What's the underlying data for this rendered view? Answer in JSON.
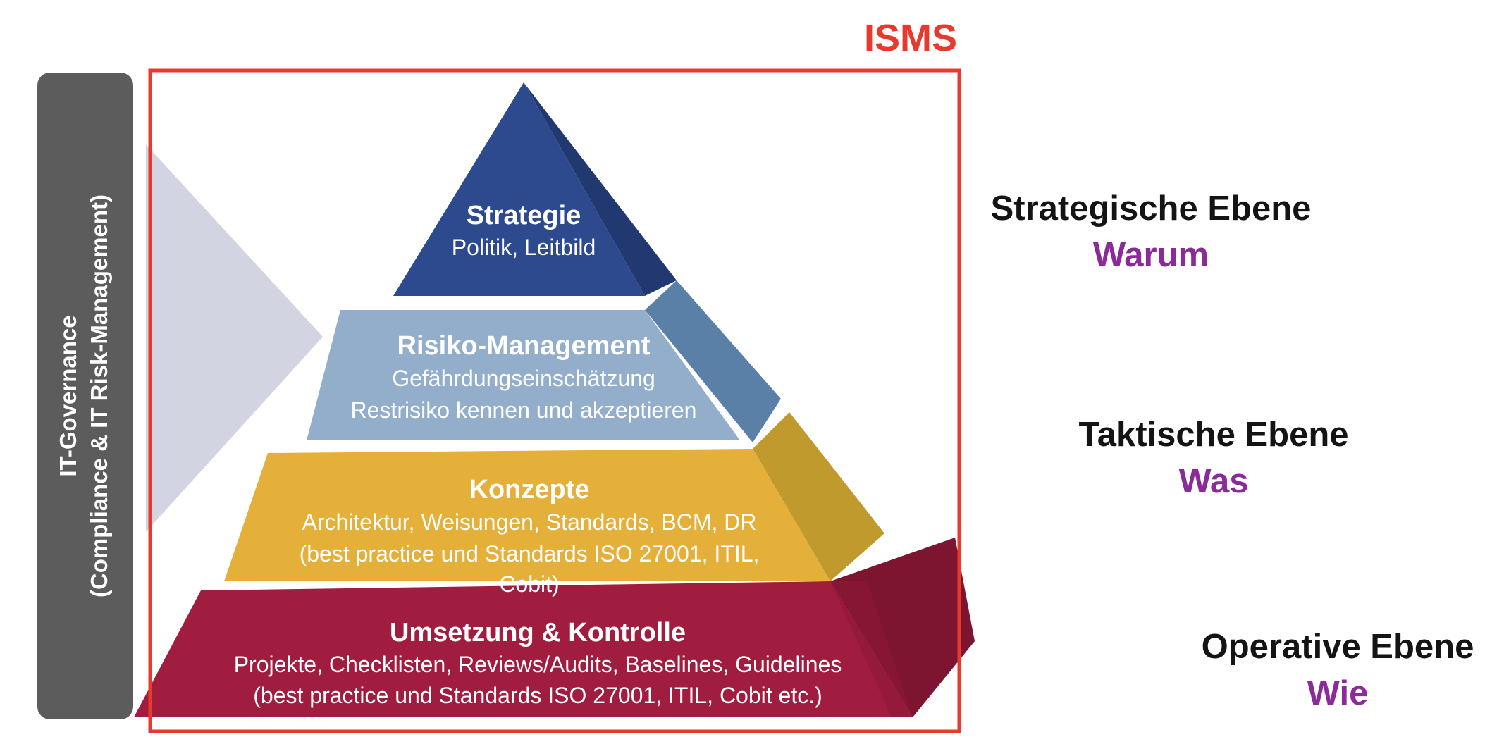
{
  "isms_label": "ISMS",
  "governance": {
    "line1": "IT-Governance",
    "line2": "(Compliance & IT Risk-Management)"
  },
  "levels": {
    "strategie": {
      "title": "Strategie",
      "line1": "Politik, Leitbild"
    },
    "risiko": {
      "title": "Risiko-Management",
      "line1": "Gefährdungseinschätzung",
      "line2": "Restrisiko kennen und akzeptieren"
    },
    "konzepte": {
      "title": "Konzepte",
      "line1": "Architektur, Weisungen, Standards, BCM, DR",
      "line2": "(best practice und Standards ISO 27001, ITIL,",
      "line3": "Cobit)"
    },
    "umsetzung": {
      "title": "Umsetzung & Kontrolle",
      "line1": "Projekte, Checklisten, Reviews/Audits, Baselines, Guidelines",
      "line2": "(best practice und Standards ISO 27001, ITIL, Cobit etc.)"
    }
  },
  "side_labels": {
    "strategisch": {
      "title": "Strategische Ebene",
      "question": "Warum"
    },
    "taktisch": {
      "title": "Taktische Ebene",
      "question": "Was"
    },
    "operativ": {
      "title": "Operative Ebene",
      "question": "Wie"
    }
  },
  "colors": {
    "isms": "#e8392f",
    "question": "#8b2b9a",
    "governance_bar": "#5c5c5c",
    "strategie": "#2e4a8f",
    "risiko": "#93aecb",
    "konzepte": "#e5b03a",
    "umsetzung": "#a11d3f"
  }
}
